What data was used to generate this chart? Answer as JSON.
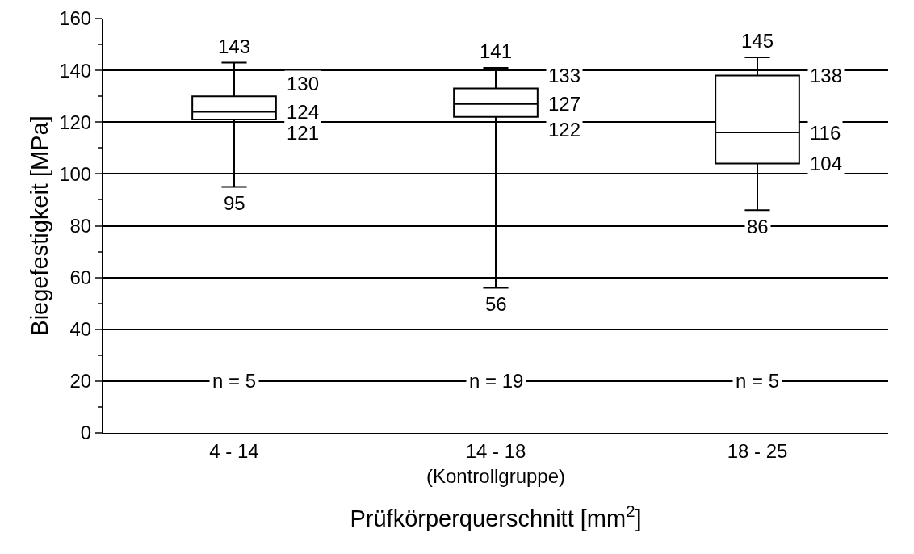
{
  "chart_data": {
    "type": "box",
    "xlabel": "Prüfkörperquerschnitt [mm$^{2}$]",
    "ylabel": "Biegefestigkeit [MPa]",
    "categories": [
      "4 - 14",
      "14 - 18\n(Kontrollgruppe)",
      "18 - 25"
    ],
    "boxes": [
      {
        "low": 95,
        "q1": 121,
        "median": 124,
        "q3": 130,
        "high": 143
      },
      {
        "low": 56,
        "q1": 122,
        "median": 127,
        "q3": 133,
        "high": 141
      },
      {
        "low": 86,
        "q1": 104,
        "median": 116,
        "q3": 138,
        "high": 145
      }
    ],
    "ylim": [
      0,
      160
    ],
    "yticks": [
      0,
      {
        "value": 10,
        "label": null
      },
      20,
      {
        "value": 30,
        "label": null
      },
      40,
      {
        "value": 50,
        "label": null
      },
      60,
      {
        "value": 70,
        "label": null
      },
      80,
      {
        "value": 90,
        "label": null
      },
      100,
      {
        "value": 110,
        "label": null
      },
      120,
      {
        "value": 130,
        "label": null
      },
      140,
      {
        "value": 150,
        "label": null
      },
      160
    ],
    "grid": "y",
    "annotations": [
      "n = 5",
      "n = 19",
      "n = 5",
      {
        "text": "143",
        "x": "4 - 14",
        "y": 143
      },
      {
        "text": "130",
        "x": "4 - 14",
        "y": 130
      },
      {
        "text": "124",
        "x": "4 - 14",
        "y": 124
      },
      {
        "text": "121",
        "x": "4 - 14",
        "y": 121
      },
      {
        "text": "95",
        "x": "4 - 14",
        "y": 95
      },
      {
        "text": "141",
        "x": "14 - 18\n(Kontrollgruppe)",
        "y": 141
      },
      {
        "text": "133",
        "x": "14 - 18\n(Kontrollgruppe)",
        "y": 133
      },
      {
        "text": "127",
        "x": "14 - 18\n(Kontrollgruppe)",
        "y": 127
      },
      {
        "text": "122",
        "x": "14 - 18\n(Kontrollgruppe)",
        "y": 122
      },
      {
        "text": "56",
        "x": "14 - 18\n(Kontrollgruppe)",
        "y": 56
      },
      {
        "text": "145",
        "x": "18 - 25",
        "y": 145
      },
      {
        "text": "138",
        "x": "18 - 25",
        "y": 138
      },
      {
        "text": "116",
        "x": "18 - 25",
        "y": 116
      },
      {
        "text": "104",
        "x": "18 - 25",
        "y": 104
      },
      {
        "text": "86",
        "x": "18 - 25",
        "y": 86
      }
    ]
  }
}
